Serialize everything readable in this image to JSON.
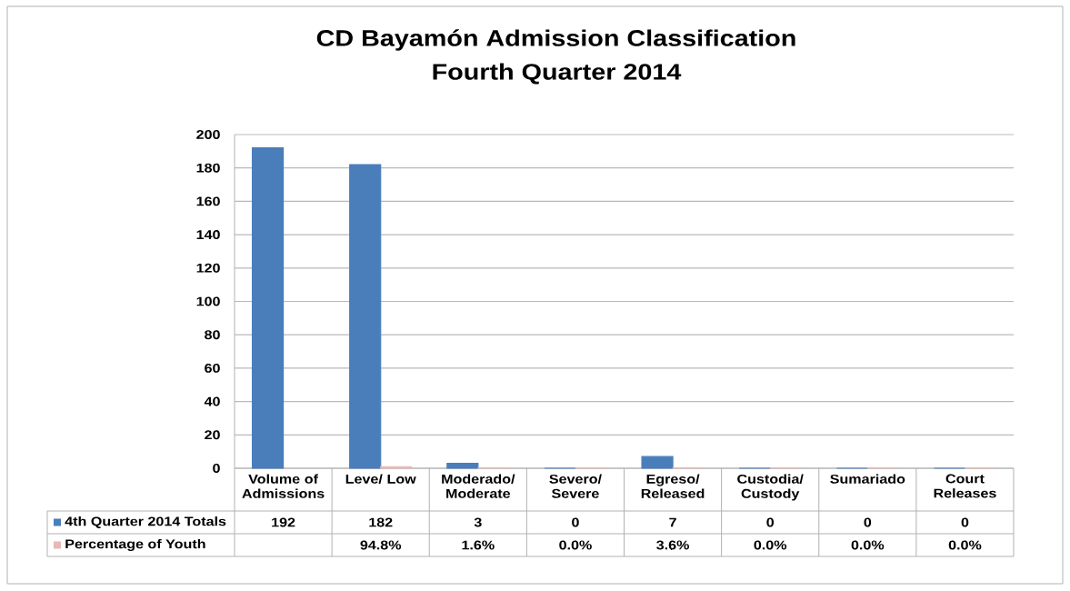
{
  "chart_data": {
    "type": "bar",
    "title": "CD Bayamón Admission Classification",
    "subtitle": "Fourth Quarter 2014",
    "categories": [
      "Volume of Admissions",
      "Leve/ Low",
      "Moderado/ Moderate",
      "Severo/ Severe",
      "Egreso/ Released",
      "Custodia/ Custody",
      "Sumariado",
      "Court Releases"
    ],
    "series": [
      {
        "name": "4th Quarter 2014 Totals",
        "color": "#4a7ebb",
        "values": [
          192,
          182,
          3,
          0,
          7,
          0,
          0,
          0
        ],
        "value_labels": [
          "192",
          "182",
          "3",
          "0",
          "7",
          "0",
          "0",
          "0"
        ]
      },
      {
        "name": "Percentage of Youth",
        "color": "#e6b9b8",
        "values": [
          null,
          0.948,
          0.016,
          0,
          0.036,
          0,
          0,
          0
        ],
        "value_labels": [
          null,
          "94.8%",
          "1.6%",
          "0.0%",
          "3.6%",
          "0.0%",
          "0.0%",
          "0.0%"
        ]
      }
    ],
    "ylim": [
      0,
      200
    ],
    "yticks": [
      0,
      20,
      40,
      60,
      80,
      100,
      120,
      140,
      160,
      180,
      200
    ],
    "grid": "y",
    "legend": "bottom left"
  }
}
